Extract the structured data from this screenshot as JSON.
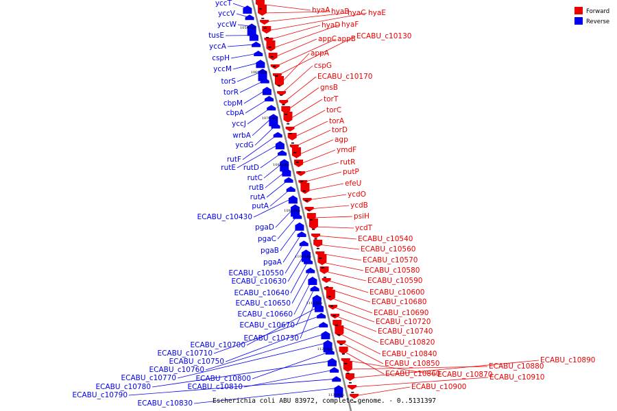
{
  "caption": "Escherichia coli ABU 83972, complete genome. - 0..5131397",
  "colors": {
    "forward": "#ee0000",
    "reverse": "#0000ee",
    "axis": "#8a8a8a"
  },
  "legend": [
    {
      "label": "Forward",
      "color": "#ee0000"
    },
    {
      "label": "Reverse",
      "color": "#0000ee"
    }
  ],
  "ticks": [
    "1050 kbp",
    "1060 kbp",
    "1070 kbp",
    "1080 kbp",
    "1090 kbp",
    "1100 kbp",
    "1110 kbp",
    "1120 kbp",
    "1130 kbp"
  ],
  "reverse_genes": [
    "yccT",
    "yccV",
    "yccW",
    "tusE",
    "yccA",
    "cspH",
    "yccM",
    "torS",
    "torR",
    "cbpM",
    "cbpA",
    "yccJ",
    "wrbA",
    "ycdG",
    "rutF",
    "rutE",
    "rutD",
    "rutC",
    "rutB",
    "rutA",
    "putA",
    "ECABU_c10430",
    "pgaD",
    "pgaC",
    "pgaB",
    "pgaA",
    "ECABU_c10550",
    "ECABU_c10630",
    "ECABU_c10640",
    "ECABU_c10650",
    "ECABU_c10660",
    "ECABU_c10670",
    "ECABU_c10730",
    "ECABU_c10700",
    "ECABU_c10710",
    "ECABU_c10750",
    "ECABU_c10760",
    "ECABU_c10770",
    "ECABU_c10800",
    "ECABU_c10780",
    "ECABU_c10810",
    "ECABU_c10790",
    "ECABU_c10830"
  ],
  "forward_genes": [
    "hyaA",
    "hyaB",
    "hyaC",
    "hyaE",
    "hyaD",
    "hyaF",
    "appC",
    "appB",
    "ECABU_c10130",
    "appA",
    "cspG",
    "ECABU_c10170",
    "gnsB",
    "torT",
    "torC",
    "torA",
    "torD",
    "agp",
    "ymdF",
    "rutR",
    "putP",
    "efeU",
    "ycdO",
    "ycdB",
    "psiH",
    "ycdT",
    "ECABU_c10540",
    "ECABU_c10560",
    "ECABU_c10570",
    "ECABU_c10580",
    "ECABU_c10590",
    "ECABU_c10600",
    "ECABU_c10680",
    "ECABU_c10690",
    "ECABU_c10720",
    "ECABU_c10740",
    "ECABU_c10820",
    "ECABU_c10840",
    "ECABU_c10850",
    "ECABU_c10860",
    "ECABU_c10870",
    "ECABU_c10880",
    "ECABU_c10890",
    "ECABU_c10910",
    "ECABU_c10900"
  ]
}
